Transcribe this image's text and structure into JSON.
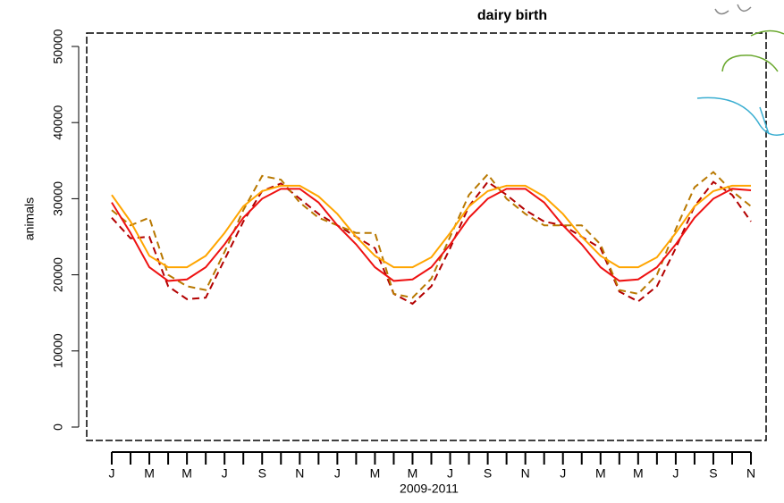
{
  "chart_data": {
    "type": "line",
    "title": "dairy birth",
    "ylabel": "animals",
    "xlabel": "2009-2011",
    "categories": [
      "J",
      null,
      "M",
      null,
      "M",
      null,
      "J",
      null,
      "S",
      null,
      "N",
      null,
      "J",
      null,
      "M",
      null,
      "M",
      null,
      "J",
      null,
      "S",
      null,
      "N",
      null,
      "J",
      null,
      "M",
      null,
      "M",
      null,
      "J",
      null,
      "S",
      null,
      "N"
    ],
    "series": [
      {
        "color": "#b30000",
        "dash": true,
        "values": [
          27500,
          24800,
          25000,
          18500,
          16800,
          17000,
          22000,
          27000,
          31000,
          32000,
          30000,
          28000,
          26500,
          25000,
          23500,
          17500,
          16200,
          18500,
          23500,
          29000,
          32200,
          30500,
          28500,
          27000,
          26500,
          25000,
          23500,
          17800,
          16500,
          18500,
          23500,
          29000,
          32200,
          30500,
          27000
        ]
      },
      {
        "color": "#b87800",
        "dash": true,
        "values": [
          28500,
          26500,
          27500,
          20000,
          18500,
          18000,
          23000,
          28500,
          33000,
          32500,
          29500,
          27500,
          26500,
          25500,
          25500,
          17500,
          17000,
          19500,
          25000,
          30500,
          33200,
          30000,
          28000,
          26500,
          26500,
          26500,
          24000,
          18000,
          17500,
          20000,
          26000,
          31500,
          33500,
          31000,
          29000
        ]
      },
      {
        "color": "#ee1111",
        "dash": false,
        "values": [
          29500,
          25500,
          21000,
          19200,
          19400,
          21000,
          24000,
          27500,
          30000,
          31300,
          31300,
          29500,
          26500,
          24000,
          21000,
          19200,
          19400,
          21000,
          24000,
          27500,
          30000,
          31300,
          31300,
          29500,
          26500,
          24000,
          21000,
          19200,
          19400,
          21000,
          24000,
          27500,
          30000,
          31300,
          31100
        ]
      },
      {
        "color": "#ffa500",
        "dash": false,
        "values": [
          30500,
          27000,
          22500,
          21000,
          21000,
          22500,
          25500,
          29000,
          31000,
          31700,
          31700,
          30300,
          28000,
          25000,
          22500,
          21000,
          21000,
          22300,
          25500,
          29000,
          31000,
          31700,
          31700,
          30300,
          28000,
          25000,
          22500,
          21000,
          21000,
          22300,
          25500,
          29000,
          31000,
          31700,
          31700
        ]
      }
    ],
    "ylim": [
      -1760,
      51760
    ],
    "yticks": [
      0,
      10000,
      20000,
      30000,
      40000,
      50000
    ]
  }
}
